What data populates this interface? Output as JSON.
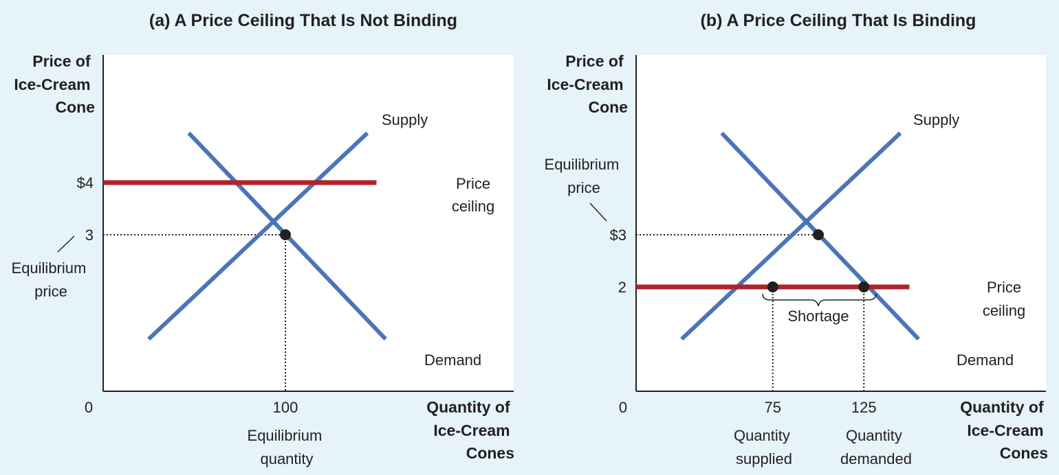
{
  "colors": {
    "background": "#e6f3f9",
    "plot": "#ffffff",
    "curve": "#4a76b8",
    "ceiling": "#b0232a",
    "point": "#231f20",
    "text": "#231f20"
  },
  "chart_data": [
    {
      "type": "line",
      "title": "(a) A Price Ceiling That Is Not Binding",
      "ylabel": [
        "Price of",
        "Ice-Cream",
        "Cone"
      ],
      "xlabel": [
        "Quantity of",
        "Ice-Cream",
        "Cones"
      ],
      "origin_label": "0",
      "series": [
        {
          "name": "Supply",
          "x": [
            25,
            145
          ],
          "y": [
            1.0,
            4.95
          ]
        },
        {
          "name": "Demand",
          "x": [
            47,
            155
          ],
          "y": [
            4.95,
            1.0
          ]
        },
        {
          "name": "Price ceiling",
          "x": [
            0,
            150
          ],
          "y": [
            4,
            4
          ]
        }
      ],
      "price_ceiling": 4,
      "equilibrium": {
        "x": 100,
        "y": 3
      },
      "y_ticks": [
        {
          "value": 4,
          "label": "$4"
        },
        {
          "value": 3,
          "label": "3"
        }
      ],
      "x_ticks": [
        {
          "value": 100,
          "label": "100"
        }
      ],
      "annotations": [
        {
          "text": "Equilibrium",
          "text2": "price",
          "points_to": "y=3"
        },
        {
          "text": "Equilibrium",
          "text2": "quantity",
          "points_to": "x=100"
        }
      ]
    },
    {
      "type": "line",
      "title": "(b) A Price Ceiling That Is Binding",
      "ylabel": [
        "Price of",
        "Ice-Cream",
        "Cone"
      ],
      "xlabel": [
        "Quantity of",
        "Ice-Cream",
        "Cones"
      ],
      "origin_label": "0",
      "series": [
        {
          "name": "Supply",
          "x": [
            25,
            145
          ],
          "y": [
            1.0,
            4.95
          ]
        },
        {
          "name": "Demand",
          "x": [
            47,
            155
          ],
          "y": [
            4.95,
            1.0
          ]
        },
        {
          "name": "Price ceiling",
          "x": [
            0,
            150
          ],
          "y": [
            2,
            2
          ]
        }
      ],
      "price_ceiling": 2,
      "equilibrium": {
        "x": 100,
        "y": 3
      },
      "quantity_supplied": {
        "x": 75,
        "y": 2
      },
      "quantity_demanded": {
        "x": 125,
        "y": 2
      },
      "y_ticks": [
        {
          "value": 3,
          "label": "$3"
        },
        {
          "value": 2,
          "label": "2"
        }
      ],
      "x_ticks": [
        {
          "value": 75,
          "label": "75"
        },
        {
          "value": 125,
          "label": "125"
        }
      ],
      "annotations": [
        {
          "text": "Equilibrium",
          "text2": "price",
          "points_to": "y=3"
        },
        {
          "text": "Shortage",
          "spans": [
            75,
            125
          ]
        },
        {
          "text": "Quantity",
          "text2": "supplied",
          "points_to": "x=75"
        },
        {
          "text": "Quantity",
          "text2": "demanded",
          "points_to": "x=125"
        }
      ]
    }
  ]
}
